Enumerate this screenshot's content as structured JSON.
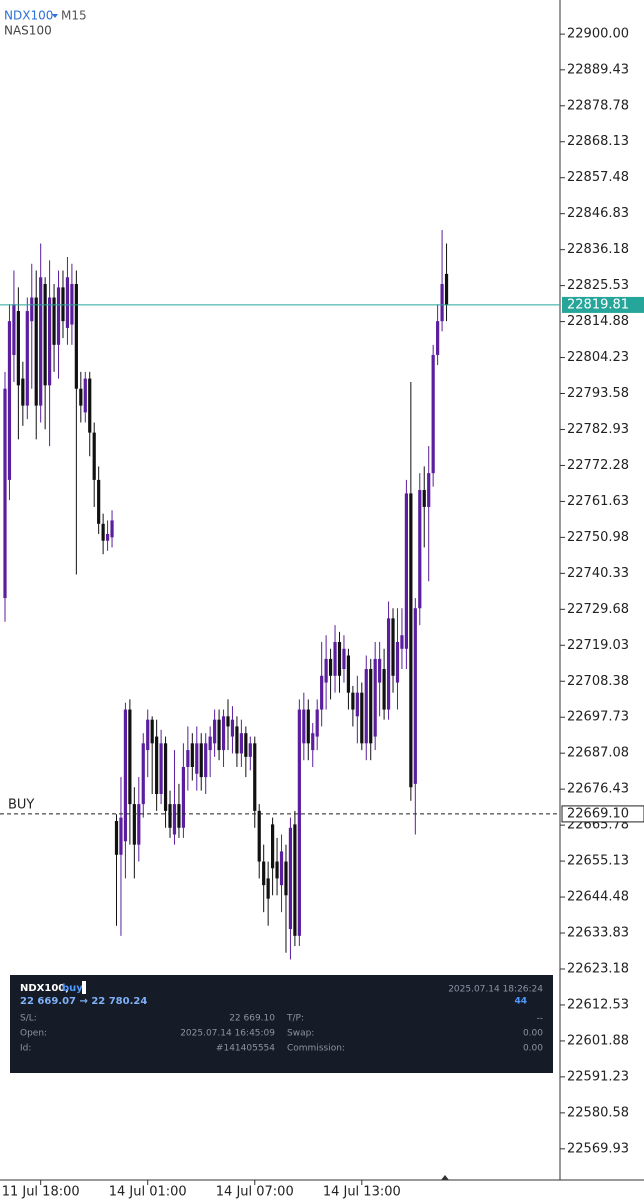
{
  "chart_data": {
    "type": "candlestick",
    "symbol": "NDX100",
    "timeframe": "M15",
    "subtitle": "NAS100",
    "up_color": "#5b1e9e",
    "down_color": "#111111",
    "ylim": [
      22560.7,
      22910.1
    ],
    "yticks": [
      {
        "value": 22900,
        "label": "22900.00"
      },
      22889.43,
      22878.78,
      22868.13,
      22857.48,
      22846.83,
      22836.18,
      22825.53,
      22814.88,
      22804.23,
      22793.58,
      22782.93,
      22772.28,
      22761.63,
      22750.98,
      22740.33,
      22729.68,
      22719.03,
      22708.38,
      22697.73,
      22687.08,
      22676.43,
      22665.78,
      22655.13,
      22644.48,
      22633.83,
      22623.18,
      22612.53,
      22601.88,
      22591.23,
      22580.58,
      22569.93
    ],
    "xticks": [
      {
        "value": 8,
        "label": "11 Jul 18:00"
      },
      {
        "value": 32,
        "label": "14 Jul 01:00"
      },
      {
        "value": 56,
        "label": "14 Jul 07:00"
      },
      {
        "value": 80,
        "label": "14 Jul 13:00"
      }
    ],
    "bid_line": {
      "value": 22819.81,
      "color": "#26a69a"
    },
    "position_line": {
      "label": "BUY",
      "value": {
        "value": 22669.1,
        "label": "22669.10"
      }
    },
    "open": [
      22733,
      22768,
      22805,
      22818,
      22798,
      22790,
      22815,
      22822,
      22790,
      22826,
      22796,
      22822,
      22808,
      22825,
      22813,
      22814,
      22826,
      22795,
      22788,
      22798,
      22782,
      22768,
      22755,
      22750,
      22751,
      22667,
      22657,
      22661,
      22700,
      22672,
      22660,
      22672,
      22688,
      22697,
      22692,
      22675,
      22690,
      22672,
      22663,
      22672,
      22665,
      22683,
      22690,
      22681,
      22690,
      22680,
      22688,
      22690,
      22697,
      22688,
      22698,
      22692,
      22695,
      22687,
      22693,
      22686,
      22690,
      22670,
      22655,
      22650,
      22666,
      22655,
      22648,
      22655,
      22635,
      22666,
      22633,
      22690,
      22700,
      22688,
      22692,
      22700,
      22708,
      22715,
      22710,
      22720,
      22712,
      22716,
      22705,
      22698,
      22705,
      22690,
      22712,
      22692,
      22708,
      22712,
      22700,
      22727,
      22708,
      22718,
      22718,
      22764,
      22678,
      22730,
      22765,
      22760,
      22770,
      22805,
      22815,
      22829
    ],
    "high": [
      22800,
      22820,
      22830,
      22825,
      22803,
      22822,
      22832,
      22830,
      22838,
      22828,
      22833,
      22826,
      22830,
      22830,
      22834,
      22832,
      22830,
      22800,
      22800,
      22800,
      22785,
      22772,
      22758,
      22756,
      22759,
      22669,
      22680,
      22702,
      22703,
      22677,
      22680,
      22693,
      22700,
      22698,
      22697,
      22694,
      22692,
      22676,
      22688,
      22678,
      22690,
      22695,
      22693,
      22695,
      22693,
      22693,
      22695,
      22700,
      22700,
      22700,
      22703,
      22701,
      22698,
      22697,
      22695,
      22692,
      22692,
      22672,
      22660,
      22655,
      22668,
      22662,
      22663,
      22660,
      22668,
      22670,
      22703,
      22705,
      22703,
      22696,
      22703,
      22720,
      22722,
      22718,
      22725,
      22723,
      22722,
      22718,
      22707,
      22710,
      22708,
      22716,
      22715,
      22720,
      22720,
      22718,
      22732,
      22730,
      22730,
      22730,
      22768,
      22797,
      22733,
      22770,
      22772,
      22778,
      22808,
      22820,
      22842,
      22838
    ],
    "low": [
      22726,
      22762,
      22797,
      22780,
      22784,
      22786,
      22795,
      22780,
      22785,
      22783,
      22778,
      22800,
      22798,
      22810,
      22808,
      22808,
      22740,
      22785,
      22785,
      22775,
      22760,
      22752,
      22746,
      22747,
      22748,
      22636,
      22633,
      22650,
      22660,
      22650,
      22655,
      22668,
      22680,
      22675,
      22670,
      22672,
      22665,
      22662,
      22660,
      22662,
      22662,
      22676,
      22679,
      22676,
      22676,
      22675,
      22680,
      22686,
      22685,
      22683,
      22688,
      22687,
      22683,
      22683,
      22680,
      22682,
      22665,
      22650,
      22640,
      22636,
      22645,
      22645,
      22640,
      22628,
      22626,
      22630,
      22630,
      22685,
      22685,
      22683,
      22688,
      22695,
      22700,
      22703,
      22705,
      22705,
      22708,
      22700,
      22695,
      22690,
      22688,
      22685,
      22685,
      22688,
      22698,
      22697,
      22697,
      22705,
      22700,
      22712,
      22712,
      22673,
      22663,
      22725,
      22748,
      22738,
      22766,
      22802,
      22812,
      22815
    ],
    "close": [
      22795,
      22815,
      22820,
      22796,
      22790,
      22818,
      22822,
      22790,
      22828,
      22796,
      22822,
      22808,
      22825,
      22815,
      22828,
      22826,
      22795,
      22790,
      22798,
      22782,
      22768,
      22755,
      22750,
      22752,
      22756,
      22657,
      22668,
      22700,
      22672,
      22660,
      22672,
      22690,
      22697,
      22690,
      22675,
      22690,
      22670,
      22665,
      22672,
      22665,
      22683,
      22688,
      22683,
      22690,
      22680,
      22690,
      22692,
      22697,
      22688,
      22698,
      22695,
      22697,
      22687,
      22693,
      22686,
      22690,
      22670,
      22655,
      22648,
      22644,
      22653,
      22650,
      22658,
      22645,
      22665,
      22633,
      22700,
      22700,
      22690,
      22693,
      22700,
      22710,
      22715,
      22710,
      22720,
      22710,
      22718,
      22705,
      22700,
      22705,
      22690,
      22712,
      22690,
      22715,
      22715,
      22700,
      22727,
      22710,
      22720,
      22722,
      22764,
      22677,
      22730,
      22765,
      22760,
      22770,
      22805,
      22815,
      22826,
      22819.81
    ]
  },
  "position_panel": {
    "symbol": "NDX100,",
    "side": "buy",
    "price_range": "22 669.07 → 22 780.24",
    "time": "2025.07.14 18:26:24",
    "profit": 44,
    "rows": [
      [
        "S/L:",
        "22 669.10",
        "T/P:",
        "--"
      ],
      [
        "Open:",
        "2025.07.14 16:45:09",
        "Swap:",
        "0.00"
      ],
      [
        "Id:",
        "#141405554",
        "Commission:",
        "0.00"
      ]
    ]
  }
}
